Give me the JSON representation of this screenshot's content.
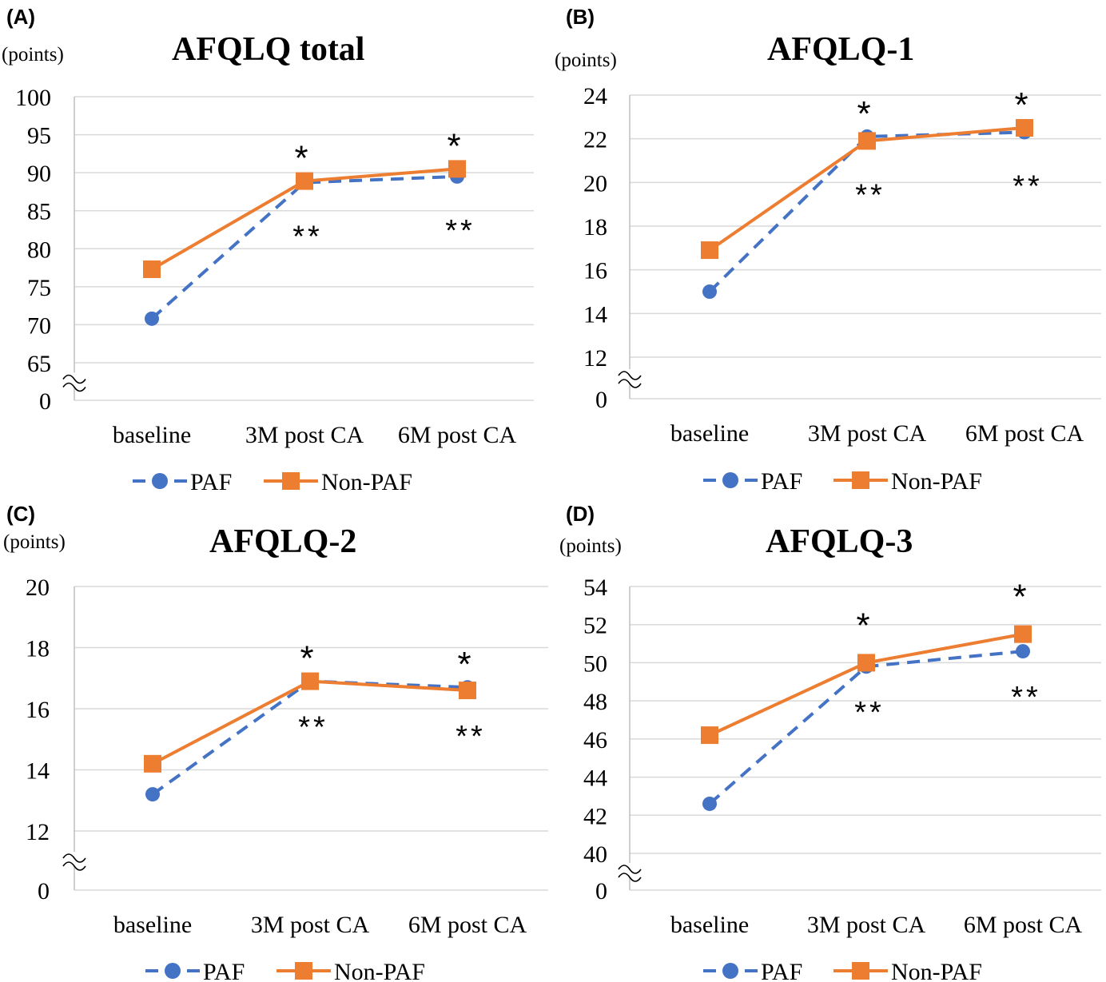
{
  "chart_data": [
    {
      "type": "line",
      "panel_label": "(A)",
      "title": "AFQLQ total",
      "ylabel": "(points)",
      "categories": [
        "baseline",
        "3M post CA",
        "6M post CA"
      ],
      "yticks": [
        "0",
        "65",
        "70",
        "75",
        "80",
        "85",
        "90",
        "95",
        "100"
      ],
      "ylim": [
        65,
        100
      ],
      "axis_break": true,
      "grid": true,
      "legend_position": "bottom",
      "series": [
        {
          "name": "PAF",
          "values": [
            70.8,
            88.7,
            89.5
          ],
          "color": "#4472c4",
          "style": "dashed",
          "marker": "circle"
        },
        {
          "name": "Non-PAF",
          "values": [
            77.3,
            88.9,
            90.5
          ],
          "color": "#ed7d31",
          "style": "solid",
          "marker": "square"
        }
      ],
      "annotations": [
        {
          "category": "3M post CA",
          "above": "*",
          "below": "**"
        },
        {
          "category": "6M post CA",
          "above": "*",
          "below": "**"
        }
      ]
    },
    {
      "type": "line",
      "panel_label": "(B)",
      "title": "AFQLQ-1",
      "ylabel": "(points)",
      "categories": [
        "baseline",
        "3M post CA",
        "6M post CA"
      ],
      "yticks": [
        "0",
        "12",
        "14",
        "16",
        "18",
        "20",
        "22",
        "24"
      ],
      "ylim": [
        12,
        24
      ],
      "axis_break": true,
      "grid": true,
      "legend_position": "bottom",
      "series": [
        {
          "name": "PAF",
          "values": [
            15.0,
            22.1,
            22.3
          ],
          "color": "#4472c4",
          "style": "dashed",
          "marker": "circle"
        },
        {
          "name": "Non-PAF",
          "values": [
            16.9,
            21.9,
            22.5
          ],
          "color": "#ed7d31",
          "style": "solid",
          "marker": "square"
        }
      ],
      "annotations": [
        {
          "category": "3M post CA",
          "above": "*",
          "below": "**"
        },
        {
          "category": "6M post CA",
          "above": "*",
          "below": "**"
        }
      ]
    },
    {
      "type": "line",
      "panel_label": "(C)",
      "title": "AFQLQ-2",
      "ylabel": "(points)",
      "categories": [
        "baseline",
        "3M post CA",
        "6M post CA"
      ],
      "yticks": [
        "0",
        "12",
        "14",
        "16",
        "18",
        "20"
      ],
      "ylim": [
        12,
        20
      ],
      "axis_break": true,
      "grid": true,
      "legend_position": "bottom",
      "series": [
        {
          "name": "PAF",
          "values": [
            13.2,
            16.9,
            16.7
          ],
          "color": "#4472c4",
          "style": "dashed",
          "marker": "circle"
        },
        {
          "name": "Non-PAF",
          "values": [
            14.2,
            16.9,
            16.6
          ],
          "color": "#ed7d31",
          "style": "solid",
          "marker": "square"
        }
      ],
      "annotations": [
        {
          "category": "3M post CA",
          "above": "*",
          "below": "**"
        },
        {
          "category": "6M post CA",
          "above": "*",
          "below": "**"
        }
      ]
    },
    {
      "type": "line",
      "panel_label": "(D)",
      "title": "AFQLQ-3",
      "ylabel": "(points)",
      "categories": [
        "baseline",
        "3M post CA",
        "6M post CA"
      ],
      "yticks": [
        "0",
        "40",
        "42",
        "44",
        "46",
        "48",
        "50",
        "52",
        "54"
      ],
      "ylim": [
        40,
        54
      ],
      "axis_break": true,
      "grid": true,
      "legend_position": "bottom",
      "series": [
        {
          "name": "PAF",
          "values": [
            42.6,
            49.8,
            50.6
          ],
          "color": "#4472c4",
          "style": "dashed",
          "marker": "circle"
        },
        {
          "name": "Non-PAF",
          "values": [
            46.2,
            50.0,
            51.5
          ],
          "color": "#ed7d31",
          "style": "solid",
          "marker": "square"
        }
      ],
      "annotations": [
        {
          "category": "3M post CA",
          "above": "*",
          "below": "**"
        },
        {
          "category": "6M post CA",
          "above": "*",
          "below": "**"
        }
      ]
    }
  ]
}
